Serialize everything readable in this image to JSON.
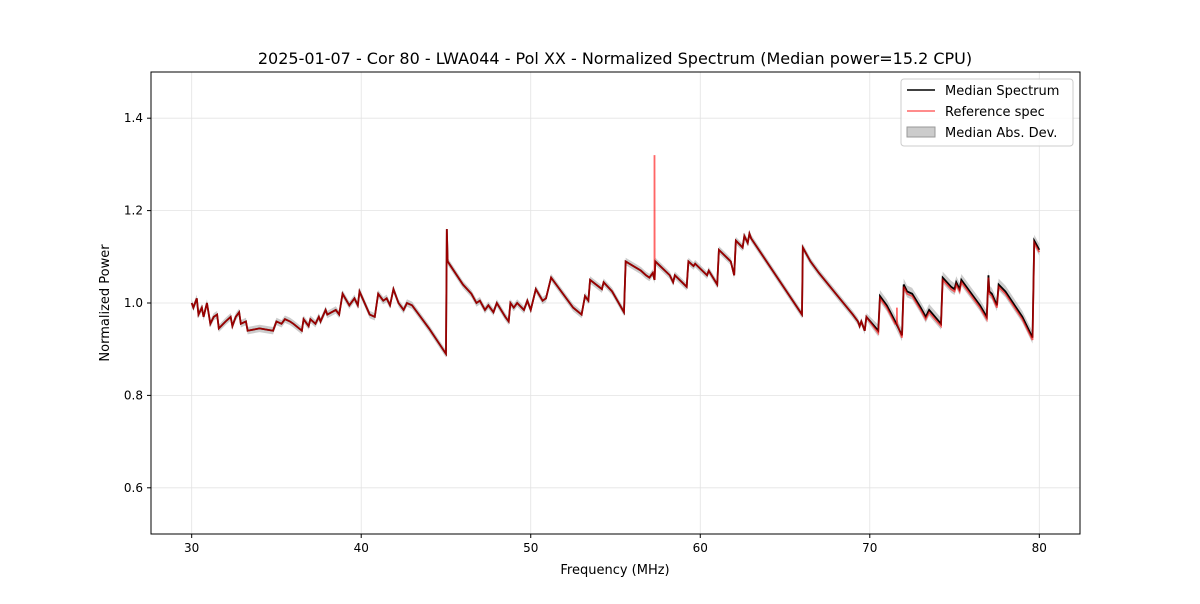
{
  "chart_data": {
    "type": "line",
    "title": "2025-01-07 - Cor 80 - LWA044 - Pol XX - Normalized Spectrum (Median power=15.2 CPU)",
    "xlabel": "Frequency (MHz)",
    "ylabel": "Normalized Power",
    "xlim": [
      27.6,
      82.4
    ],
    "ylim": [
      0.5,
      1.5
    ],
    "xticks": [
      30,
      40,
      50,
      60,
      70,
      80
    ],
    "yticks": [
      0.6,
      0.8,
      1.0,
      1.2,
      1.4
    ],
    "xtick_labels": [
      "30",
      "40",
      "50",
      "60",
      "70",
      "80"
    ],
    "ytick_labels": [
      "0.6",
      "0.8",
      "1.0",
      "1.2",
      "1.4"
    ],
    "grid": true,
    "legend_position": "top-right",
    "legend": [
      "Median Spectrum",
      "Reference spec",
      "Median Abs. Dev."
    ],
    "colors": {
      "median": "#000000",
      "reference": "#ff0000",
      "mad": "#999999"
    },
    "median_spectrum": {
      "x": [
        30.0,
        30.1,
        30.3,
        30.4,
        30.6,
        30.7,
        30.9,
        31.1,
        31.3,
        31.5,
        31.6,
        32.0,
        32.3,
        32.4,
        32.6,
        32.8,
        32.9,
        33.2,
        33.3,
        34.0,
        34.8,
        35.0,
        35.3,
        35.5,
        35.8,
        36.0,
        36.5,
        36.6,
        36.9,
        37.0,
        37.3,
        37.5,
        37.6,
        37.9,
        38.0,
        38.5,
        38.7,
        38.9,
        39.3,
        39.6,
        39.8,
        39.9,
        40.5,
        40.8,
        41.0,
        41.3,
        41.5,
        41.7,
        41.9,
        42.2,
        42.5,
        42.7,
        43.0,
        43.5,
        44.0,
        45.0,
        45.05,
        45.1,
        46.0,
        46.5,
        46.8,
        47.0,
        47.3,
        47.5,
        47.8,
        48.0,
        48.5,
        48.7,
        48.8,
        49.0,
        49.2,
        49.6,
        49.8,
        50.0,
        50.3,
        50.7,
        50.9,
        51.2,
        51.5,
        52.5,
        53.0,
        53.2,
        53.4,
        53.5,
        54.2,
        54.3,
        54.8,
        55.5,
        55.6,
        56.5,
        56.8,
        57.0,
        57.2,
        57.3,
        57.35,
        58.2,
        58.4,
        58.5,
        59.2,
        59.3,
        59.6,
        59.7,
        60.4,
        60.5,
        61.0,
        61.1,
        61.8,
        62.0,
        62.1,
        62.5,
        62.6,
        62.8,
        62.9,
        63.0,
        64.0,
        65.0,
        66.0,
        66.05,
        66.5,
        67.0,
        68.0,
        69.0,
        69.3,
        69.4,
        69.5,
        69.7,
        69.8,
        70.5,
        70.6,
        71.0,
        71.5,
        71.9,
        72.0,
        72.2,
        72.5,
        73.0,
        73.3,
        73.5,
        74.2,
        74.3,
        74.8,
        75.0,
        75.1,
        75.3,
        75.4,
        76.0,
        76.5,
        76.9,
        77.0,
        77.05,
        77.2,
        77.5,
        77.6,
        78.0,
        79.0,
        79.6,
        79.7,
        80.0
      ],
      "y": [
        1.0,
        0.99,
        1.01,
        0.975,
        0.99,
        0.97,
        1.0,
        0.955,
        0.97,
        0.975,
        0.945,
        0.96,
        0.97,
        0.95,
        0.97,
        0.98,
        0.955,
        0.96,
        0.94,
        0.945,
        0.94,
        0.96,
        0.955,
        0.965,
        0.96,
        0.955,
        0.94,
        0.965,
        0.95,
        0.965,
        0.955,
        0.97,
        0.96,
        0.985,
        0.975,
        0.985,
        0.975,
        1.02,
        0.995,
        1.01,
        0.995,
        1.025,
        0.975,
        0.97,
        1.02,
        1.005,
        1.01,
        0.995,
        1.03,
        1.0,
        0.985,
        1.0,
        0.995,
        0.97,
        0.945,
        0.89,
        1.16,
        1.09,
        1.04,
        1.02,
        1.0,
        1.005,
        0.985,
        0.995,
        0.98,
        1.0,
        0.97,
        0.96,
        1.0,
        0.99,
        1.0,
        0.985,
        1.005,
        0.985,
        1.03,
        1.005,
        1.01,
        1.055,
        1.04,
        0.99,
        0.975,
        1.015,
        1.005,
        1.05,
        1.03,
        1.045,
        1.025,
        0.98,
        1.09,
        1.07,
        1.06,
        1.055,
        1.065,
        1.05,
        1.09,
        1.06,
        1.045,
        1.06,
        1.035,
        1.09,
        1.08,
        1.085,
        1.06,
        1.07,
        1.04,
        1.115,
        1.09,
        1.06,
        1.135,
        1.12,
        1.145,
        1.13,
        1.15,
        1.14,
        1.085,
        1.03,
        0.975,
        1.12,
        1.09,
        1.065,
        1.02,
        0.975,
        0.96,
        0.95,
        0.96,
        0.94,
        0.97,
        0.94,
        1.015,
        0.995,
        0.96,
        0.93,
        1.04,
        1.025,
        1.02,
        0.99,
        0.97,
        0.985,
        0.955,
        1.055,
        1.035,
        1.03,
        1.045,
        1.03,
        1.05,
        1.02,
        0.995,
        0.97,
        1.06,
        1.025,
        1.02,
        0.995,
        1.04,
        1.025,
        0.97,
        0.925,
        1.135,
        1.115
      ]
    },
    "reference_spikes": [
      {
        "x": 57.3,
        "y": 1.32
      },
      {
        "x": 71.6,
        "y": 0.99
      }
    ],
    "reference_note_same_as_median_elsewhere": true,
    "mad": 0.008
  }
}
